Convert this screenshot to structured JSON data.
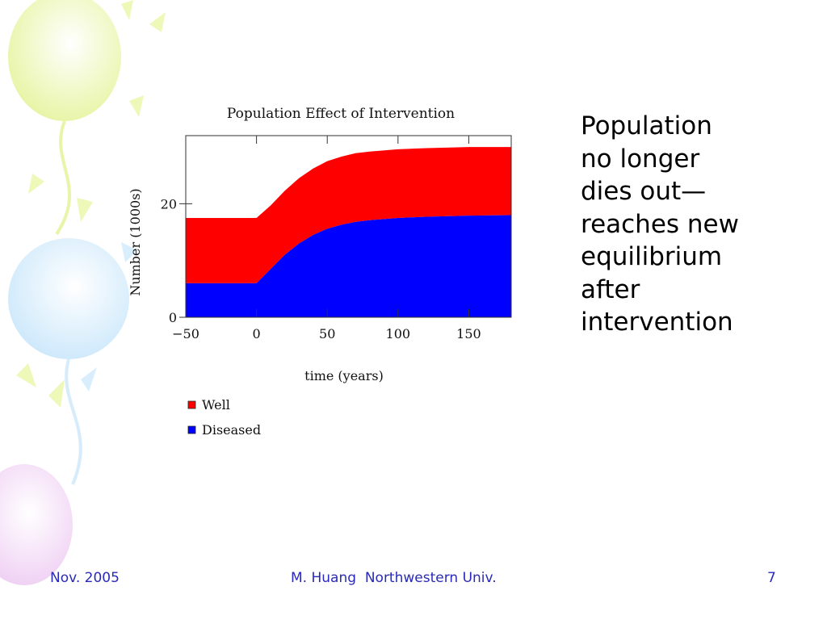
{
  "slide": {
    "side_text": "Population\nno longer\ndies out—\nreaches new\nequilibrium\nafter\nintervention",
    "footer_left": "Nov. 2005",
    "footer_center": "M. Huang  Northwestern Univ.",
    "footer_right": "7"
  },
  "colors": {
    "well": "#ff0000",
    "diseased": "#0000ff",
    "footer_text": "#2a2ab8"
  },
  "chart_data": {
    "type": "area",
    "stacked": true,
    "title": "Population Effect of Intervention",
    "xlabel": "time (years)",
    "ylabel": "Number (1000s)",
    "xlim": [
      -50,
      180
    ],
    "ylim": [
      0,
      32
    ],
    "x_ticks": [
      -50,
      0,
      50,
      100,
      150
    ],
    "x_tick_labels": [
      "−50",
      "0",
      "50",
      "100",
      "150"
    ],
    "y_ticks": [
      0,
      20
    ],
    "y_tick_labels": [
      "0",
      "20"
    ],
    "x": [
      -50,
      0,
      10,
      20,
      30,
      40,
      50,
      60,
      70,
      80,
      100,
      120,
      150,
      180
    ],
    "series": [
      {
        "name": "Diseased",
        "color": "#0000ff",
        "values": [
          6,
          6,
          8.5,
          11,
          13,
          14.5,
          15.6,
          16.3,
          16.8,
          17.1,
          17.5,
          17.7,
          17.9,
          18
        ]
      },
      {
        "name": "Well",
        "color": "#ff0000",
        "values": [
          11.5,
          11.5,
          11.2,
          11.3,
          11.5,
          11.7,
          11.9,
          12,
          12.1,
          12.1,
          12.1,
          12.1,
          12.1,
          12
        ]
      }
    ],
    "legend": {
      "position": "bottom-left"
    },
    "grid": false
  }
}
